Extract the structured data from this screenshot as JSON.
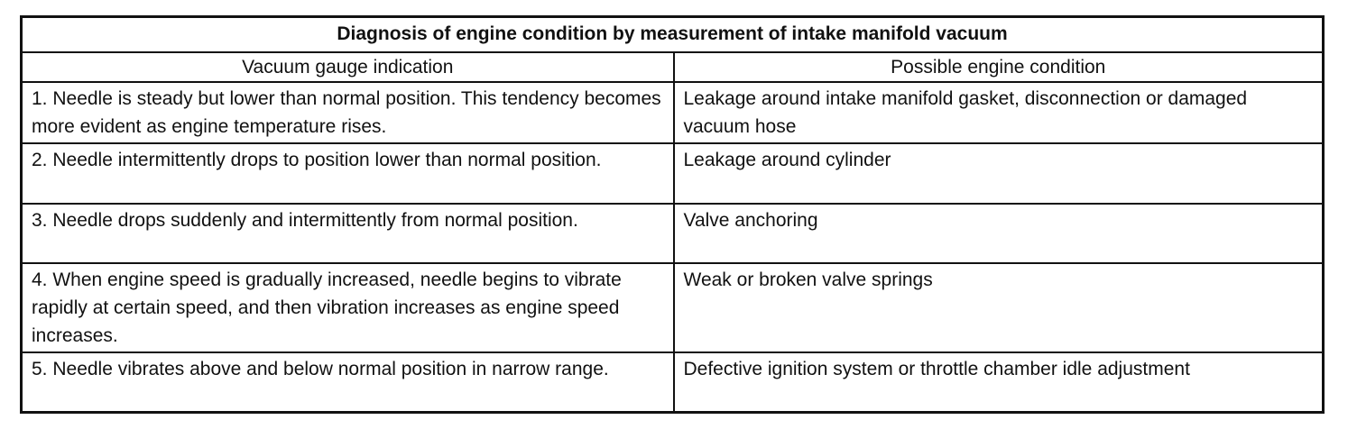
{
  "table": {
    "title": "Diagnosis of engine condition by measurement of intake manifold vacuum",
    "headers": [
      "Vacuum gauge indication",
      "Possible engine condition"
    ],
    "rows": [
      {
        "indication": "1. Needle is steady but lower than normal position. This tendency becomes more evident as engine temperature rises.",
        "condition": "Leakage around intake manifold gasket, disconnection or damaged vacuum hose"
      },
      {
        "indication": "2. Needle intermittently drops to position lower than normal position.",
        "condition": "Leakage around cylinder"
      },
      {
        "indication": "3. Needle drops suddenly and intermittently from normal position.",
        "condition": "Valve anchoring"
      },
      {
        "indication": "4. When engine speed is gradually increased, needle begins to vibrate rapidly at certain speed, and then vibration increases as engine speed increases.",
        "condition": "Weak or broken valve springs"
      },
      {
        "indication": "5. Needle vibrates above and below normal position in narrow range.",
        "condition": "Defective ignition system or throttle chamber idle adjustment"
      }
    ]
  }
}
